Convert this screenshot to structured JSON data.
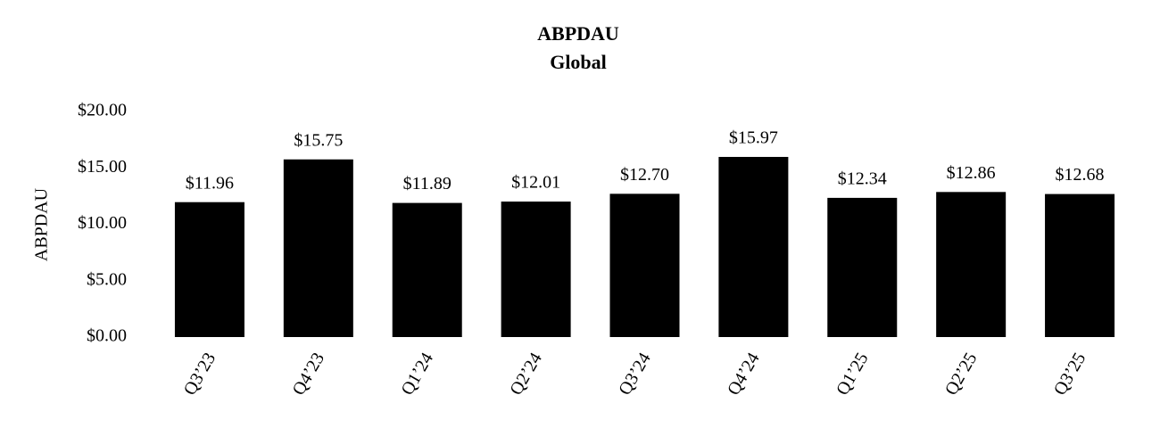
{
  "chart_data": {
    "type": "bar",
    "title": "ABPDAU",
    "subtitle": "Global",
    "y_label": "ABPDAU",
    "categories": [
      "Q3’23",
      "Q4’23",
      "Q1’24",
      "Q2’24",
      "Q3’24",
      "Q4’24",
      "Q1’25",
      "Q2’25",
      "Q3’25"
    ],
    "values": [
      11.96,
      15.75,
      11.89,
      12.01,
      12.7,
      15.97,
      12.34,
      12.86,
      12.68
    ],
    "value_labels": [
      "$11.96",
      "$15.75",
      "$11.89",
      "$12.01",
      "$12.70",
      "$15.97",
      "$12.34",
      "$12.86",
      "$12.68"
    ],
    "color": "#000000",
    "ylim": [
      0,
      20
    ],
    "yticks": [
      {
        "value": 0,
        "label": "$0.00"
      },
      {
        "value": 5,
        "label": "$5.00"
      },
      {
        "value": 10,
        "label": "$10.00"
      },
      {
        "value": 15,
        "label": "$15.00"
      },
      {
        "value": 20,
        "label": "$20.00"
      }
    ],
    "grid": false
  }
}
